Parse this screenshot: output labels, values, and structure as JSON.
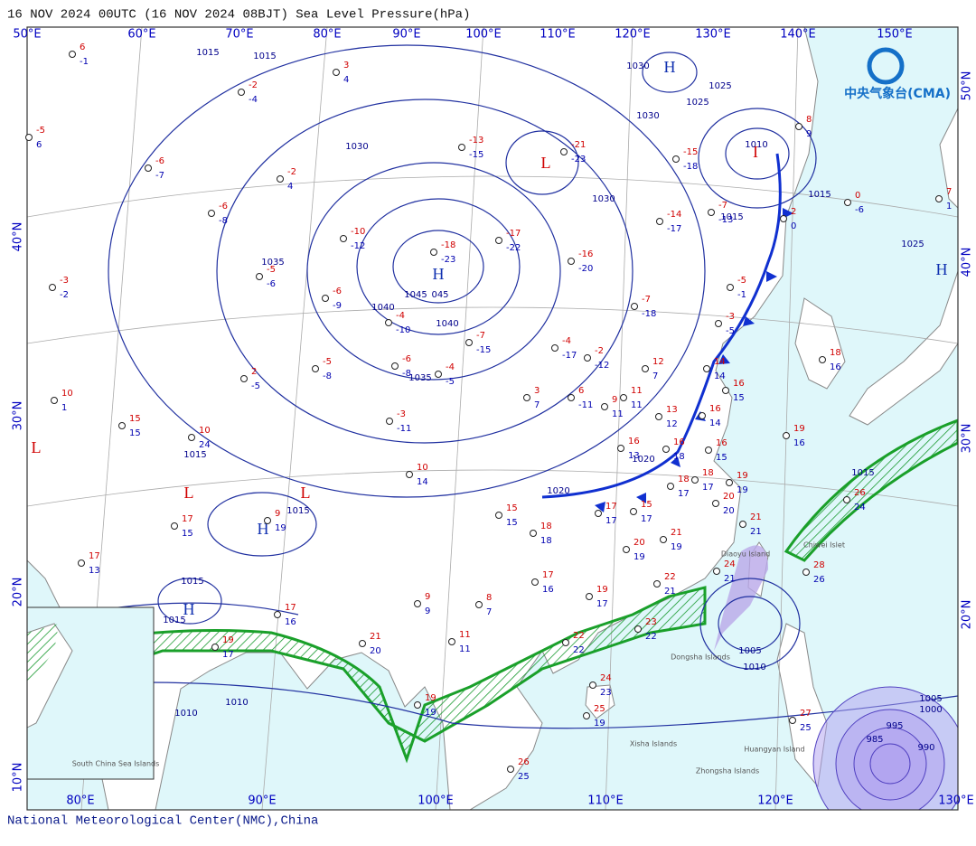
{
  "header": {
    "title": "16 NOV 2024 00UTC (16 NOV 2024 08BJT) Sea Level Pressure(hPa)",
    "logo": "中央气象台(CMA)"
  },
  "footer": "National Meteorological Center(NMC),China",
  "longitude_top": [
    "50°E",
    "60°E",
    "70°E",
    "80°E",
    "90°E",
    "100°E",
    "110°E",
    "120°E",
    "130°E",
    "140°E",
    "150°E"
  ],
  "longitude_bottom": [
    "80°E",
    "90°E",
    "100°E",
    "110°E",
    "120°E",
    "130°E"
  ],
  "latitude_left": [
    "10°N",
    "20°N",
    "30°N",
    "40°N"
  ],
  "latitude_right": [
    "20°N",
    "30°N",
    "40°N",
    "50°N"
  ],
  "centers": [
    "H",
    "L",
    "H",
    "L",
    "L",
    "L",
    "H",
    "H",
    "H",
    "I"
  ],
  "isobar_labels": [
    "1015",
    "1015",
    "1030",
    "1035",
    "1040",
    "1045",
    "045",
    "1040",
    "1035",
    "1030",
    "1030",
    "1025",
    "1025",
    "1030",
    "1015",
    "1015",
    "1020",
    "1020",
    "1015",
    "1015",
    "1015",
    "1015",
    "1015",
    "1010",
    "1010",
    "1010",
    "1005",
    "1005",
    "1000",
    "995",
    "990",
    "985",
    "1010",
    "1025"
  ],
  "places": [
    "Dongsha Islands",
    "Xisha Islands",
    "Zhongsha Islands",
    "Huangyan Island",
    "Diaoyu Island",
    "Chiwei Islet",
    "South China Sea Islands"
  ],
  "stations": [
    {
      "t": 6,
      "td": -1
    },
    {
      "t": -2,
      "td": -4
    },
    {
      "t": 3,
      "td": 4
    },
    {
      "t": -5,
      "td": 6
    },
    {
      "t": -6,
      "td": -7
    },
    {
      "t": -2,
      "td": 4
    },
    {
      "t": -6,
      "td": -8
    },
    {
      "t": -10,
      "td": -12
    },
    {
      "t": -18,
      "td": -23
    },
    {
      "t": -17,
      "td": -22
    },
    {
      "t": -16,
      "td": -20
    },
    {
      "t": -21,
      "td": -23
    },
    {
      "t": -13,
      "td": -15
    },
    {
      "t": -14,
      "td": -17
    },
    {
      "t": -7,
      "td": -13
    },
    {
      "t": -3,
      "td": -2
    },
    {
      "t": -5,
      "td": -6
    },
    {
      "t": -6,
      "td": -9
    },
    {
      "t": -4,
      "td": -10
    },
    {
      "t": -7,
      "td": -15
    },
    {
      "t": -4,
      "td": -17
    },
    {
      "t": -2,
      "td": -12
    },
    {
      "t": -7,
      "td": -18
    },
    {
      "t": -5,
      "td": -1
    },
    {
      "t": -3,
      "td": -5
    },
    {
      "t": 14,
      "td": 14
    },
    {
      "t": 2,
      "td": -5
    },
    {
      "t": -5,
      "td": -8
    },
    {
      "t": -6,
      "td": -8
    },
    {
      "t": -4,
      "td": -5
    },
    {
      "t": 10,
      "td": 1
    },
    {
      "t": 15,
      "td": 15
    },
    {
      "t": 10,
      "td": 24
    },
    {
      "t": -3,
      "td": -11
    },
    {
      "t": 3,
      "td": 7
    },
    {
      "t": 6,
      "td": -11
    },
    {
      "t": 9,
      "td": 11
    },
    {
      "t": 11,
      "td": 11
    },
    {
      "t": 12,
      "td": 7
    },
    {
      "t": 13,
      "td": 12
    },
    {
      "t": 18,
      "td": 16
    },
    {
      "t": 16,
      "td": 15
    },
    {
      "t": 16,
      "td": 14
    },
    {
      "t": 16,
      "td": 13
    },
    {
      "t": 16,
      "td": 18
    },
    {
      "t": 16,
      "td": 15
    },
    {
      "t": 19,
      "td": 16
    },
    {
      "t": 10,
      "td": 14
    },
    {
      "t": 9,
      "td": 19
    },
    {
      "t": 17,
      "td": 15
    },
    {
      "t": 15,
      "td": 15
    },
    {
      "t": 18,
      "td": 18
    },
    {
      "t": 17,
      "td": 17
    },
    {
      "t": 15,
      "td": 17
    },
    {
      "t": 18,
      "td": 17
    },
    {
      "t": 18,
      "td": 17
    },
    {
      "t": 19,
      "td": 19
    },
    {
      "t": 20,
      "td": 20
    },
    {
      "t": 21,
      "td": 21
    },
    {
      "t": 21,
      "td": 19
    },
    {
      "t": 20,
      "td": 19
    },
    {
      "t": 17,
      "td": 16
    },
    {
      "t": 19,
      "td": 17
    },
    {
      "t": 22,
      "td": 21
    },
    {
      "t": 24,
      "td": 21
    },
    {
      "t": 23,
      "td": 22
    },
    {
      "t": 22,
      "td": 22
    },
    {
      "t": 26,
      "td": 24
    },
    {
      "t": 28,
      "td": 26
    },
    {
      "t": 8,
      "td": 7
    },
    {
      "t": 9,
      "td": 9
    },
    {
      "t": 11,
      "td": 11
    },
    {
      "t": 21,
      "td": 20
    },
    {
      "t": 17,
      "td": 16
    },
    {
      "t": 19,
      "td": 17
    },
    {
      "t": 17,
      "td": 13
    },
    {
      "t": 19,
      "td": 19
    },
    {
      "t": 24,
      "td": 23
    },
    {
      "t": 25,
      "td": 19
    },
    {
      "t": 26,
      "td": 25
    },
    {
      "t": 27,
      "td": 25
    },
    {
      "t": 0,
      "td": -6
    },
    {
      "t": 7,
      "td": 1
    },
    {
      "t": 2,
      "td": 0
    },
    {
      "t": 8,
      "td": 9
    },
    {
      "t": -15,
      "td": -18
    }
  ]
}
